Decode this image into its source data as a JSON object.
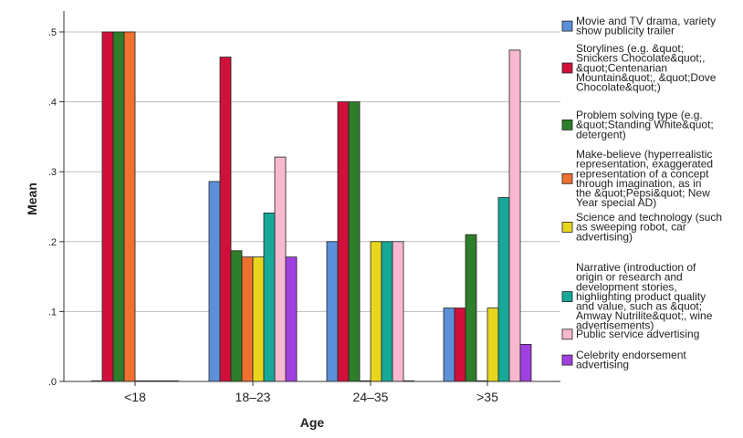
{
  "chart_data": {
    "type": "bar",
    "xlabel": "Age",
    "ylabel": "Mean",
    "ylim": [
      0,
      0.53
    ],
    "y_ticks": [
      {
        "value": 0.0,
        "label": ".0"
      },
      {
        "value": 0.1,
        "label": ".1"
      },
      {
        "value": 0.2,
        "label": ".2"
      },
      {
        "value": 0.3,
        "label": ".3"
      },
      {
        "value": 0.4,
        "label": ".4"
      },
      {
        "value": 0.5,
        "label": ".5"
      }
    ],
    "grid": true,
    "legend_position": "right",
    "categories": [
      "<18",
      "18–23",
      "24–35",
      ">35"
    ],
    "series": [
      {
        "name": "Movie and TV drama, variety show publicity trailer",
        "legend_lines": [
          "Movie and TV drama, variety",
          "show publicity trailer"
        ],
        "color": "#5b8fd8",
        "values": [
          0.0,
          0.286,
          0.2,
          0.105
        ]
      },
      {
        "name": "Storylines (e.g. &quot; Snickers Chocolate&quot;, &quot;Centenarian Mountain&quot;, &quot;Dove Chocolate&quot;)",
        "legend_lines": [
          "Storylines (e.g. &quot;",
          "Snickers Chocolate&quot;,",
          "&quot;Centenarian",
          "Mountain&quot;, &quot;Dove",
          "Chocolate&quot;)"
        ],
        "color": "#d0103a",
        "values": [
          0.5,
          0.464,
          0.4,
          0.105
        ]
      },
      {
        "name": "Problem solving type (e.g. &quot;Standing White&quot; detergent)",
        "legend_lines": [
          "Problem solving type (e.g.",
          "&quot;Standing White&quot;",
          "detergent)"
        ],
        "color": "#2e7d2a",
        "values": [
          0.5,
          0.187,
          0.4,
          0.21
        ]
      },
      {
        "name": "Make-believe (hyperrealistic representation, exaggerated representation of a concept through imagination, as in the &quot;Pepsi&quot; New Year special AD)",
        "legend_lines": [
          "Make-believe (hyperrealistic",
          "representation, exaggerated",
          "representation of a concept",
          "through imagination, as in",
          "the &quot;Pepsi&quot; New",
          "Year special AD)"
        ],
        "color": "#f07030",
        "values": [
          0.5,
          0.178,
          0.0,
          0.0
        ]
      },
      {
        "name": "Science and technology (such as sweeping robot, car advertising)",
        "legend_lines": [
          "Science and technology (such",
          "as sweeping robot, car",
          "advertising)"
        ],
        "color": "#e8d61e",
        "values": [
          0.0,
          0.178,
          0.2,
          0.105
        ]
      },
      {
        "name": "Narrative (introduction of origin or research and development stories, highlighting product quality and value, such as &quot; Amway Nutrilite&quot;, wine advertisements)",
        "legend_lines": [
          "Narrative (introduction of",
          "origin or research and",
          "development stories,",
          "highlighting product quality",
          "and value, such as &quot;",
          "Amway Nutrilite&quot;, wine",
          "advertisements)"
        ],
        "color": "#17a899",
        "values": [
          0.0,
          0.241,
          0.2,
          0.263
        ]
      },
      {
        "name": "Public service advertising",
        "legend_lines": [
          "Public service advertising"
        ],
        "color": "#f8b8d0",
        "values": [
          0.0,
          0.321,
          0.2,
          0.474
        ]
      },
      {
        "name": "Celebrity endorsement advertising",
        "legend_lines": [
          "Celebrity endorsement",
          "advertising"
        ],
        "color": "#a040e0",
        "values": [
          0.0,
          0.178,
          0.0,
          0.053
        ]
      }
    ]
  }
}
